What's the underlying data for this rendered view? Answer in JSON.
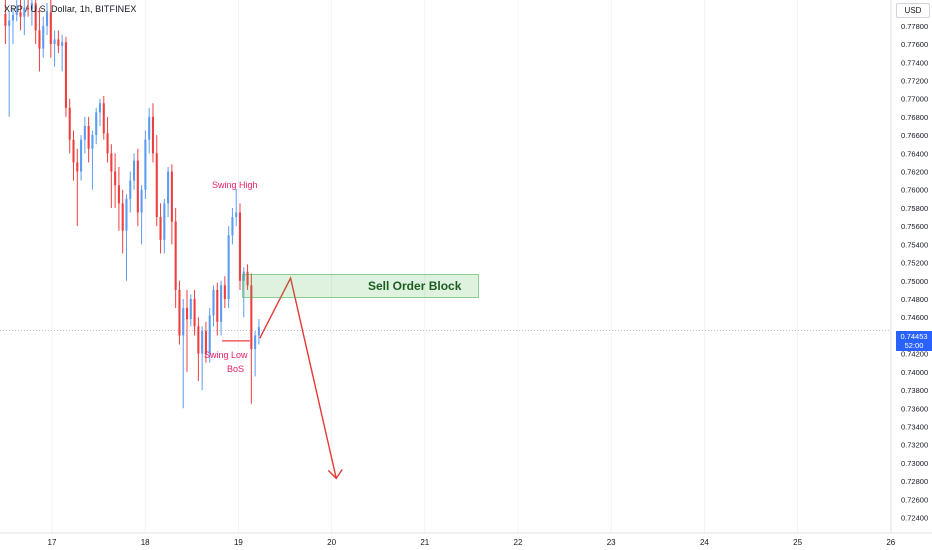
{
  "header": {
    "title": "XRP / U.S. Dollar, 1h, BITFINEX",
    "currency": "USD"
  },
  "price_tag": {
    "price": "0.74453",
    "countdown": "52:00"
  },
  "annotations": {
    "swing_high": "Swing High",
    "swing_low": "Swing Low",
    "bos": "BoS",
    "order_block": "Sell Order Block"
  },
  "colors": {
    "bull": "#5b9cf0",
    "bear": "#ef3e3e",
    "annotation": "#e91e63",
    "order_block": "#4caf50",
    "projection": "#e53935",
    "price_tag": "#2962ff"
  },
  "chart_data": {
    "type": "candlestick",
    "symbol": "XRP / U.S. Dollar",
    "timeframe": "1h",
    "exchange": "BITFINEX",
    "ylim": [
      0.7234,
      0.7804
    ],
    "y_ticks": [
      "0.77800",
      "0.77600",
      "0.77400",
      "0.77200",
      "0.77000",
      "0.76800",
      "0.76600",
      "0.76400",
      "0.76200",
      "0.76000",
      "0.75800",
      "0.75600",
      "0.75400",
      "0.75200",
      "0.75000",
      "0.74800",
      "0.74600",
      "0.74400",
      "0.74200",
      "0.74000",
      "0.73800",
      "0.73600",
      "0.73400",
      "0.73200",
      "0.73000",
      "0.72800",
      "0.72600",
      "0.72400"
    ],
    "x_ticks": [
      "17",
      "18",
      "19",
      "20",
      "21",
      "22",
      "23",
      "24",
      "25",
      "26"
    ],
    "current_price": 0.74453,
    "swing_high": 0.7601,
    "swing_low": 0.7434,
    "sell_order_block": [
      0.7491,
      0.7516
    ],
    "projection_path": [
      {
        "t": 19.23,
        "price": 0.7437
      },
      {
        "t": 19.56,
        "price": 0.7503
      },
      {
        "t": 20.05,
        "price": 0.7283
      }
    ],
    "candles": [
      {
        "o": 0.7793,
        "h": 0.781,
        "l": 0.776,
        "c": 0.778
      },
      {
        "o": 0.778,
        "h": 0.7795,
        "l": 0.768,
        "c": 0.7786
      },
      {
        "o": 0.7786,
        "h": 0.78,
        "l": 0.776,
        "c": 0.7792
      },
      {
        "o": 0.7792,
        "h": 0.781,
        "l": 0.7785,
        "c": 0.7795
      },
      {
        "o": 0.7795,
        "h": 0.7815,
        "l": 0.7775,
        "c": 0.779
      },
      {
        "o": 0.779,
        "h": 0.7812,
        "l": 0.777,
        "c": 0.78
      },
      {
        "o": 0.78,
        "h": 0.7815,
        "l": 0.779,
        "c": 0.7798
      },
      {
        "o": 0.7798,
        "h": 0.7812,
        "l": 0.778,
        "c": 0.7805
      },
      {
        "o": 0.7805,
        "h": 0.7812,
        "l": 0.776,
        "c": 0.7775
      },
      {
        "o": 0.7775,
        "h": 0.78,
        "l": 0.773,
        "c": 0.7755
      },
      {
        "o": 0.7755,
        "h": 0.779,
        "l": 0.7745,
        "c": 0.778
      },
      {
        "o": 0.778,
        "h": 0.7805,
        "l": 0.777,
        "c": 0.7795
      },
      {
        "o": 0.7795,
        "h": 0.781,
        "l": 0.7745,
        "c": 0.776
      },
      {
        "o": 0.776,
        "h": 0.7775,
        "l": 0.7735,
        "c": 0.7765
      },
      {
        "o": 0.7765,
        "h": 0.7775,
        "l": 0.775,
        "c": 0.7758
      },
      {
        "o": 0.7758,
        "h": 0.777,
        "l": 0.773,
        "c": 0.7762
      },
      {
        "o": 0.7762,
        "h": 0.7768,
        "l": 0.768,
        "c": 0.769
      },
      {
        "o": 0.769,
        "h": 0.77,
        "l": 0.764,
        "c": 0.7655
      },
      {
        "o": 0.7655,
        "h": 0.7665,
        "l": 0.761,
        "c": 0.763
      },
      {
        "o": 0.763,
        "h": 0.7645,
        "l": 0.756,
        "c": 0.762
      },
      {
        "o": 0.762,
        "h": 0.766,
        "l": 0.761,
        "c": 0.7655
      },
      {
        "o": 0.7655,
        "h": 0.768,
        "l": 0.764,
        "c": 0.767
      },
      {
        "o": 0.767,
        "h": 0.768,
        "l": 0.763,
        "c": 0.7645
      },
      {
        "o": 0.7645,
        "h": 0.7665,
        "l": 0.76,
        "c": 0.766
      },
      {
        "o": 0.766,
        "h": 0.769,
        "l": 0.765,
        "c": 0.7685
      },
      {
        "o": 0.7685,
        "h": 0.77,
        "l": 0.767,
        "c": 0.7695
      },
      {
        "o": 0.7695,
        "h": 0.7703,
        "l": 0.7655,
        "c": 0.7662
      },
      {
        "o": 0.7662,
        "h": 0.768,
        "l": 0.763,
        "c": 0.764
      },
      {
        "o": 0.764,
        "h": 0.765,
        "l": 0.758,
        "c": 0.762
      },
      {
        "o": 0.762,
        "h": 0.764,
        "l": 0.758,
        "c": 0.7605
      },
      {
        "o": 0.7605,
        "h": 0.7625,
        "l": 0.7555,
        "c": 0.7585
      },
      {
        "o": 0.7585,
        "h": 0.76,
        "l": 0.753,
        "c": 0.7555
      },
      {
        "o": 0.7555,
        "h": 0.7595,
        "l": 0.75,
        "c": 0.759
      },
      {
        "o": 0.759,
        "h": 0.762,
        "l": 0.7575,
        "c": 0.761
      },
      {
        "o": 0.761,
        "h": 0.764,
        "l": 0.76,
        "c": 0.7632
      },
      {
        "o": 0.7632,
        "h": 0.7645,
        "l": 0.756,
        "c": 0.7575
      },
      {
        "o": 0.7575,
        "h": 0.7605,
        "l": 0.754,
        "c": 0.76
      },
      {
        "o": 0.76,
        "h": 0.7665,
        "l": 0.759,
        "c": 0.7655
      },
      {
        "o": 0.7655,
        "h": 0.769,
        "l": 0.764,
        "c": 0.768
      },
      {
        "o": 0.768,
        "h": 0.7695,
        "l": 0.763,
        "c": 0.764
      },
      {
        "o": 0.764,
        "h": 0.766,
        "l": 0.756,
        "c": 0.757
      },
      {
        "o": 0.757,
        "h": 0.7585,
        "l": 0.753,
        "c": 0.7545
      },
      {
        "o": 0.7545,
        "h": 0.759,
        "l": 0.753,
        "c": 0.7585
      },
      {
        "o": 0.7585,
        "h": 0.7625,
        "l": 0.757,
        "c": 0.762
      },
      {
        "o": 0.762,
        "h": 0.7628,
        "l": 0.754,
        "c": 0.7565
      },
      {
        "o": 0.7565,
        "h": 0.758,
        "l": 0.747,
        "c": 0.749
      },
      {
        "o": 0.749,
        "h": 0.75,
        "l": 0.743,
        "c": 0.744
      },
      {
        "o": 0.744,
        "h": 0.748,
        "l": 0.736,
        "c": 0.747
      },
      {
        "o": 0.747,
        "h": 0.749,
        "l": 0.74,
        "c": 0.7458
      },
      {
        "o": 0.7458,
        "h": 0.7485,
        "l": 0.745,
        "c": 0.748
      },
      {
        "o": 0.748,
        "h": 0.749,
        "l": 0.744,
        "c": 0.745
      },
      {
        "o": 0.745,
        "h": 0.746,
        "l": 0.739,
        "c": 0.742
      },
      {
        "o": 0.742,
        "h": 0.745,
        "l": 0.738,
        "c": 0.7445
      },
      {
        "o": 0.7445,
        "h": 0.7455,
        "l": 0.741,
        "c": 0.742
      },
      {
        "o": 0.742,
        "h": 0.747,
        "l": 0.741,
        "c": 0.7462
      },
      {
        "o": 0.7462,
        "h": 0.7495,
        "l": 0.745,
        "c": 0.749
      },
      {
        "o": 0.749,
        "h": 0.7498,
        "l": 0.744,
        "c": 0.7455
      },
      {
        "o": 0.7455,
        "h": 0.75,
        "l": 0.744,
        "c": 0.7495
      },
      {
        "o": 0.7495,
        "h": 0.7505,
        "l": 0.747,
        "c": 0.748
      },
      {
        "o": 0.748,
        "h": 0.756,
        "l": 0.747,
        "c": 0.755
      },
      {
        "o": 0.755,
        "h": 0.758,
        "l": 0.754,
        "c": 0.757
      },
      {
        "o": 0.757,
        "h": 0.7601,
        "l": 0.756,
        "c": 0.7575
      },
      {
        "o": 0.7575,
        "h": 0.7585,
        "l": 0.749,
        "c": 0.75
      },
      {
        "o": 0.75,
        "h": 0.7515,
        "l": 0.746,
        "c": 0.751
      },
      {
        "o": 0.751,
        "h": 0.7518,
        "l": 0.749,
        "c": 0.7495
      },
      {
        "o": 0.7495,
        "h": 0.7508,
        "l": 0.7365,
        "c": 0.7425
      },
      {
        "o": 0.7425,
        "h": 0.7445,
        "l": 0.7395,
        "c": 0.744
      },
      {
        "o": 0.744,
        "h": 0.7458,
        "l": 0.743,
        "c": 0.7449
      }
    ]
  }
}
